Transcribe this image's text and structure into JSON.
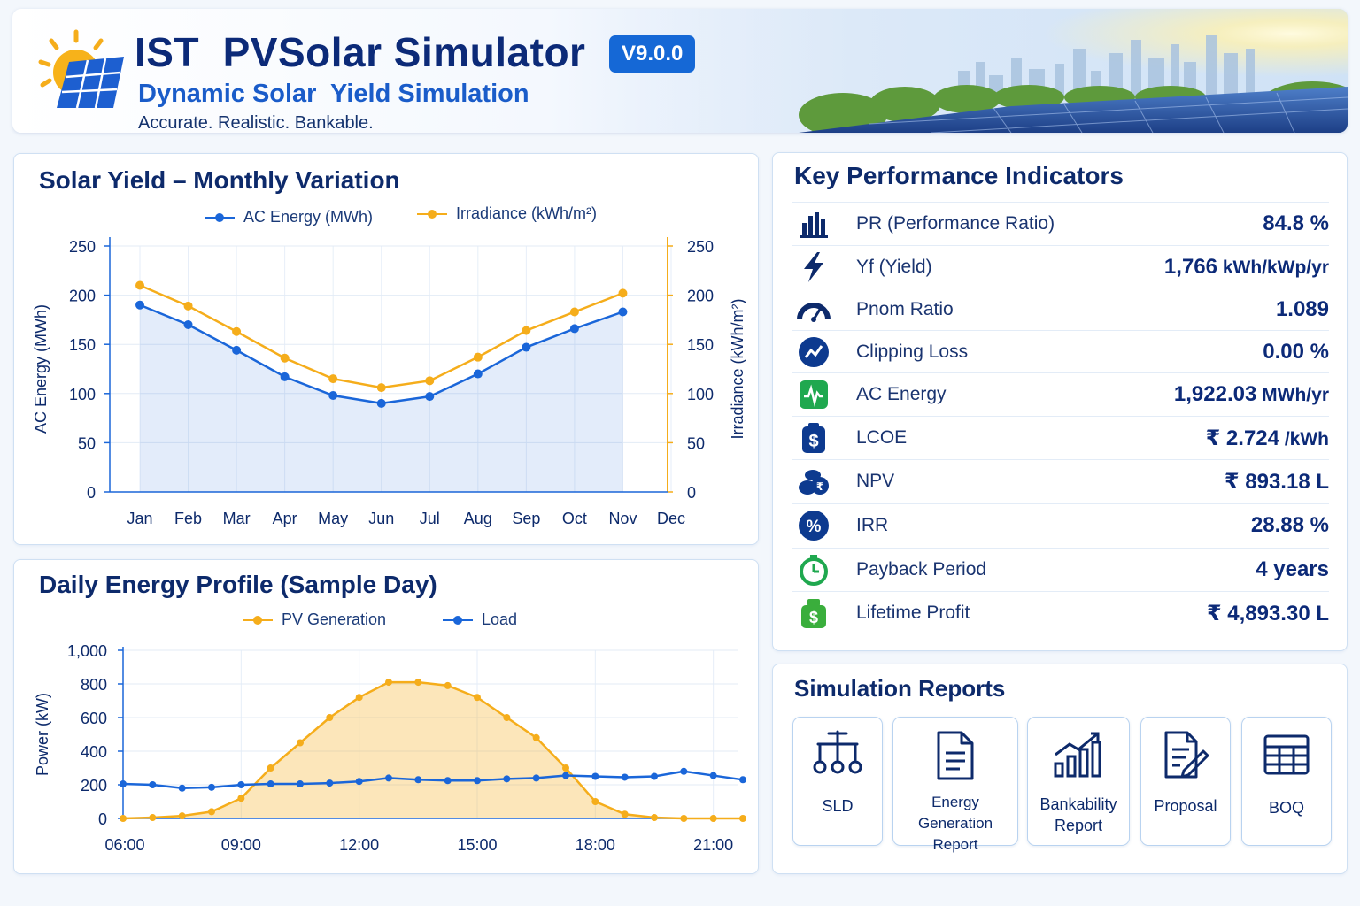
{
  "header": {
    "title": "IST  PVSolar Simulator",
    "version": "V9.0.0",
    "subtitle": "Dynamic Solar  Yield Simulation",
    "tagline": "Accurate. Realistic. Bankable."
  },
  "monthly": {
    "title": "Solar Yield – Monthly Variation",
    "legend_ac": "AC Energy (MWh)",
    "legend_irr": "Irradiance (kWh/m²)",
    "ylabel_left": "AC Energy (MWh)",
    "ylabel_right": "Irradiance (kWh/m²)"
  },
  "daily": {
    "title": "Daily Energy Profile (Sample Day)",
    "legend_pv": "PV Generation",
    "legend_load": "Load",
    "ylabel": "Power (kW)"
  },
  "kpi": {
    "title": "Key Performance Indicators",
    "items": [
      {
        "icon": "bar-chart-icon",
        "label": "PR (Performance Ratio)",
        "value": "84.8 %",
        "unit": ""
      },
      {
        "icon": "lightning-icon",
        "label": "Yf (Yield)",
        "value": "1,766",
        "unit": " kWh/kWp/yr"
      },
      {
        "icon": "gauge-icon",
        "label": "Pnom Ratio",
        "value": "1.089",
        "unit": ""
      },
      {
        "icon": "trend-icon",
        "label": "Clipping Loss",
        "value": "0.00 %",
        "unit": ""
      },
      {
        "icon": "energy-pulse-icon",
        "label": "AC Energy",
        "value": "1,922.03",
        "unit": " MWh/yr"
      },
      {
        "icon": "dollar-icon",
        "label": "LCOE",
        "value": "₹ 2.724",
        "unit": " /kWh"
      },
      {
        "icon": "coins-icon",
        "label": "NPV",
        "value": "₹ 893.18 L",
        "unit": ""
      },
      {
        "icon": "percent-icon",
        "label": "IRR",
        "value": "28.88 %",
        "unit": ""
      },
      {
        "icon": "clock-icon",
        "label": "Payback Period",
        "value": "4 years",
        "unit": ""
      },
      {
        "icon": "money-bag-icon",
        "label": "Lifetime Profit",
        "value": "₹ 4,893.30 L",
        "unit": ""
      }
    ]
  },
  "reports": {
    "title": "Simulation Reports",
    "items": [
      {
        "icon": "sld-icon",
        "label": "SLD"
      },
      {
        "icon": "document-icon",
        "label": "Energy Generation Report"
      },
      {
        "icon": "growth-chart-icon",
        "label": "Bankability Report"
      },
      {
        "icon": "proposal-icon",
        "label": "Proposal"
      },
      {
        "icon": "table-icon",
        "label": "BOQ"
      }
    ]
  },
  "colors": {
    "blue": "#1a66d9",
    "orange": "#f5ad1b",
    "navy": "#0d2a6b"
  },
  "chart_data": [
    {
      "type": "line",
      "title": "Solar Yield – Monthly Variation",
      "categories": [
        "Jan",
        "Feb",
        "Mar",
        "Apr",
        "May",
        "Jun",
        "Jul",
        "Aug",
        "Sep",
        "Oct",
        "Nov",
        "Dec"
      ],
      "series": [
        {
          "name": "AC Energy (MWh)",
          "axis": "left",
          "values": [
            190,
            170,
            144,
            117,
            98,
            90,
            97,
            120,
            147,
            166,
            183,
            null
          ]
        },
        {
          "name": "Irradiance (kWh/m²)",
          "axis": "right",
          "values": [
            210,
            189,
            163,
            136,
            115,
            106,
            113,
            137,
            164,
            183,
            202,
            null
          ]
        }
      ],
      "ylabel": "AC Energy (MWh)",
      "ylabel_right": "Irradiance (kWh/m²)",
      "ylim": [
        0,
        250
      ],
      "yticks": [
        0,
        50,
        100,
        150,
        200,
        250
      ],
      "grid": true,
      "legend": "top"
    },
    {
      "type": "line",
      "title": "Daily Energy Profile (Sample Day)",
      "x": [
        "06:00",
        "06:45",
        "07:30",
        "08:15",
        "09:00",
        "09:45",
        "10:30",
        "11:15",
        "12:00",
        "12:45",
        "13:30",
        "14:15",
        "15:00",
        "15:45",
        "16:30",
        "17:15",
        "18:00",
        "18:45",
        "19:30",
        "20:15",
        "21:00",
        "21:45"
      ],
      "xticks": [
        "06:00",
        "09:00",
        "12:00",
        "15:00",
        "18:00",
        "21:00"
      ],
      "series": [
        {
          "name": "PV Generation",
          "values": [
            0,
            5,
            15,
            40,
            120,
            300,
            450,
            600,
            720,
            810,
            810,
            790,
            720,
            600,
            480,
            300,
            100,
            25,
            5,
            0,
            0,
            0
          ]
        },
        {
          "name": "Load",
          "values": [
            205,
            200,
            180,
            185,
            200,
            205,
            205,
            210,
            220,
            240,
            230,
            225,
            225,
            235,
            240,
            255,
            250,
            245,
            250,
            280,
            255,
            230
          ]
        }
      ],
      "ylabel": "Power (kW)",
      "ylim": [
        0,
        1000
      ],
      "yticks": [
        "0",
        "200",
        "400",
        "600",
        "800",
        "1,000"
      ],
      "grid": true,
      "legend": "top"
    }
  ]
}
